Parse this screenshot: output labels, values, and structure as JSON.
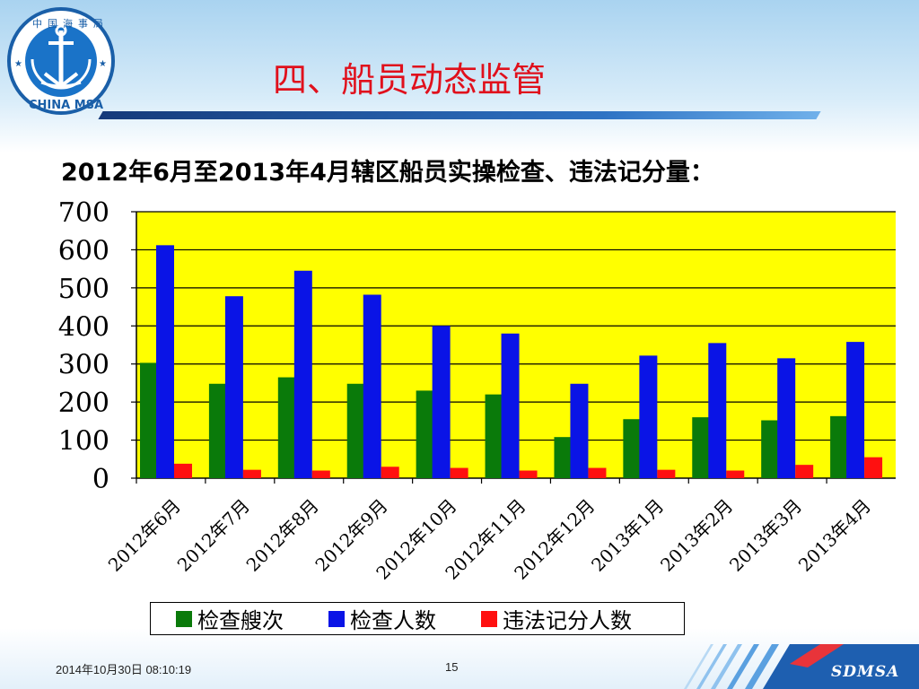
{
  "logo": {
    "top_text": "中国海事局",
    "bottom_text": "CHINA MSA"
  },
  "title": "四、船员动态监管",
  "subtitle": "2012年6月至2013年4月辖区船员实操检查、违法记分量：",
  "colors": {
    "series1": "#0a7a0a",
    "series2": "#0a14e6",
    "series3": "#ff1010",
    "plot_bg": "#ffff00",
    "title": "#e0101c"
  },
  "chart_data": {
    "type": "bar",
    "categories": [
      "2012年6月",
      "2012年7月",
      "2012年8月",
      "2012年9月",
      "2012年10月",
      "2012年11月",
      "2012年12月",
      "2013年1月",
      "2013年2月",
      "2013年3月",
      "2013年4月"
    ],
    "series": [
      {
        "name": "检查艘次",
        "values": [
          303,
          248,
          265,
          248,
          230,
          220,
          108,
          155,
          160,
          152,
          163
        ]
      },
      {
        "name": "检查人数",
        "values": [
          612,
          478,
          545,
          482,
          400,
          380,
          248,
          322,
          355,
          315,
          358
        ]
      },
      {
        "name": "违法记分人数",
        "values": [
          38,
          22,
          20,
          30,
          27,
          20,
          27,
          22,
          20,
          35,
          55
        ]
      }
    ],
    "ylim": [
      0,
      700
    ],
    "yticks": [
      0,
      100,
      200,
      300,
      400,
      500,
      600,
      700
    ],
    "grid": true,
    "legend": "bottom"
  },
  "footer": {
    "date": "2014年10月30日  08:10:19",
    "page": "15",
    "brand": "SDMSA"
  }
}
